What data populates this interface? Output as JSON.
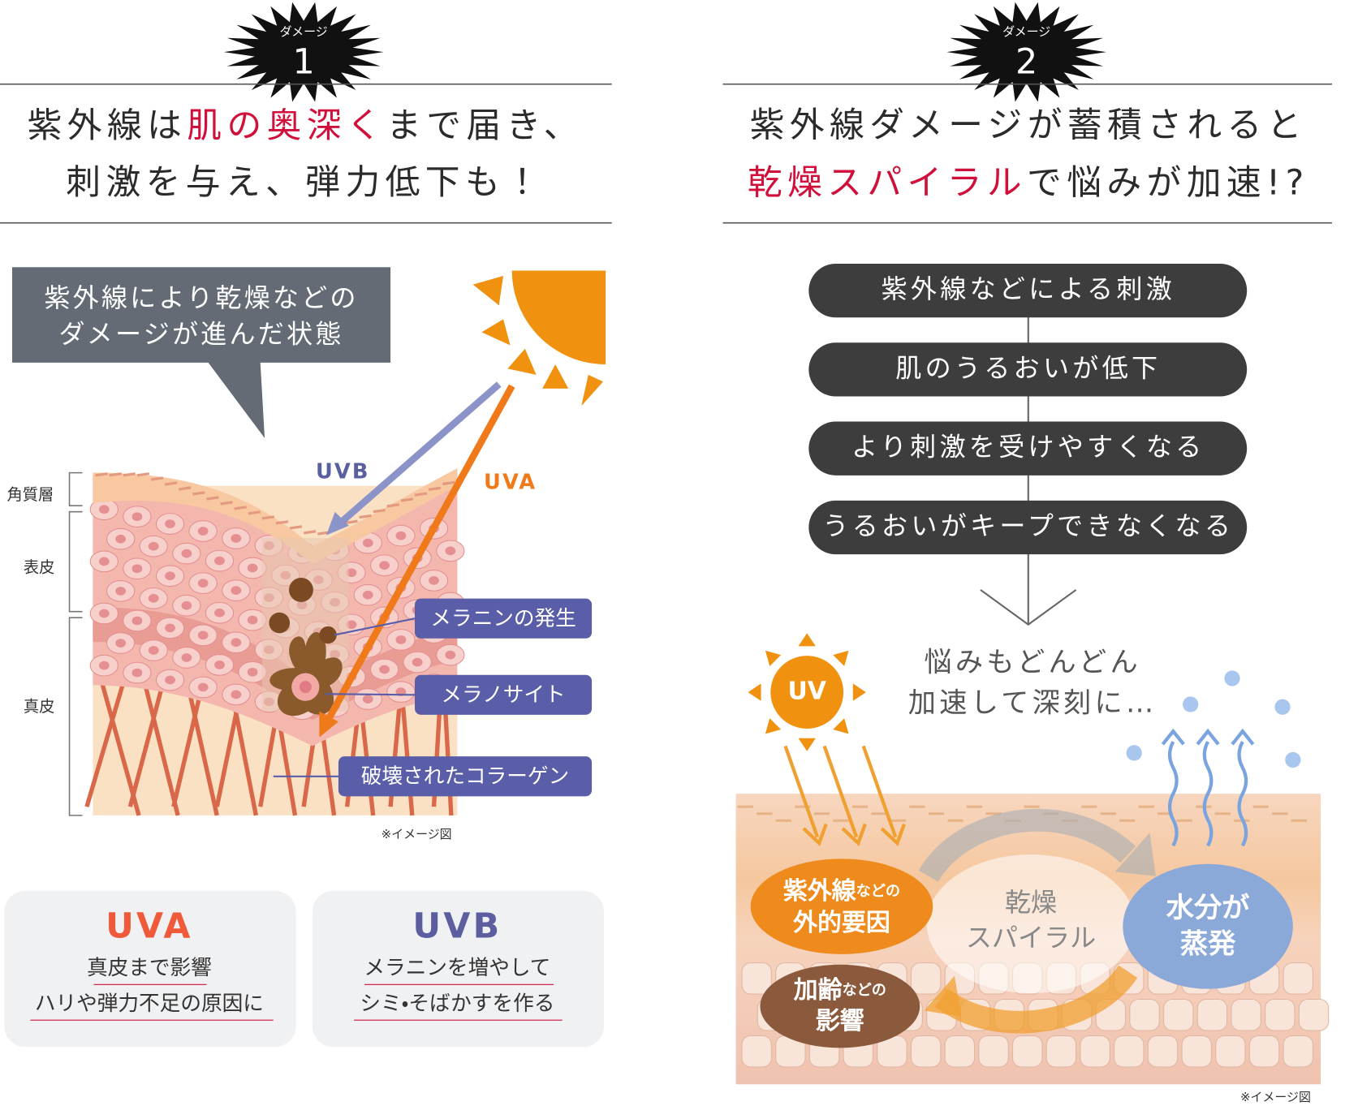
{
  "panel1": {
    "badge_label": "ダメージ",
    "badge_number": "1",
    "title_line1": [
      "紫外線は",
      "肌の奥深く",
      "まで届き、"
    ],
    "title_line2": "刺激を与え、弾力低下も！",
    "callout": [
      "紫外線により乾燥などの",
      "ダメージが進んだ状態"
    ],
    "rays": [
      "UVB",
      "UVA"
    ],
    "layers": [
      "角質層",
      "表皮",
      "真皮"
    ],
    "labels": [
      "メラニンの発生",
      "メラノサイト",
      "破壊されたコラーゲン"
    ],
    "note": "※イメージ図",
    "cards": [
      {
        "title": "UVA",
        "lines": [
          "真皮まで影響",
          "ハリや弾力不足の原因に"
        ]
      },
      {
        "title": "UVB",
        "lines": [
          "メラニンを増やして",
          "シミ・そばかすを作る"
        ]
      }
    ]
  },
  "panel2": {
    "badge_label": "ダメージ",
    "badge_number": "2",
    "title_line1": "紫外線ダメージが蓄積されると",
    "title_line2": [
      "乾燥スパイラル",
      "で悩みが加速!?"
    ],
    "steps": [
      "紫外線などによる刺激",
      "肌のうるおいが低下",
      "より刺激を受けやすくなる",
      "うるおいがキープできなくなる"
    ],
    "result": [
      "悩みもどんどん",
      "加速して深刻に…"
    ],
    "uv": "UV",
    "spiral": [
      "乾燥",
      "スパイラル"
    ],
    "bubbles": [
      {
        "lines": [
          [
            "紫外線",
            "などの"
          ],
          [
            "外的要因"
          ]
        ]
      },
      {
        "lines": [
          [
            "加齢",
            "などの"
          ],
          [
            "影響"
          ]
        ]
      },
      {
        "lines": [
          [
            "水分が"
          ],
          [
            "蒸発"
          ]
        ]
      }
    ],
    "note": "※イメージ図"
  }
}
